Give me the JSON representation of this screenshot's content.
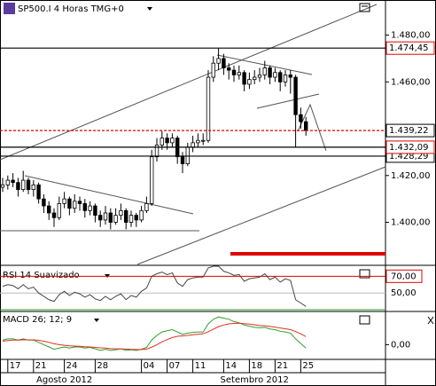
{
  "chart_data": {
    "type": "candlestick",
    "title": "SP500.I 4 Horas TMG+0",
    "ylim": [
      1382,
      1495
    ],
    "yticks": [
      {
        "value": 1480,
        "label": "1.480,00"
      },
      {
        "value": 1460,
        "label": "1.460,00"
      },
      {
        "value": 1420,
        "label": "1.420,00"
      },
      {
        "value": 1400,
        "label": "1.400,00"
      }
    ],
    "hlines": [
      {
        "value": 1474.45,
        "label": "1.474,45",
        "color": "#e00000",
        "line": "#000000"
      },
      {
        "value": 1428.29,
        "label": "1.428,29",
        "color": "#000000",
        "line": "#000000"
      },
      {
        "value": 1432.09,
        "label": "1.432,09",
        "color": "#e00000",
        "line": "#000000"
      },
      {
        "value": 1439.22,
        "label": "1.439,22",
        "color": "#000000",
        "line": "#e00000"
      }
    ],
    "xticks": [
      {
        "value": 1,
        "label": "17"
      },
      {
        "value": 6,
        "label": "21"
      },
      {
        "value": 12,
        "label": "24"
      },
      {
        "value": 18,
        "label": "28"
      },
      {
        "value": 27,
        "label": "04"
      },
      {
        "value": 32,
        "label": "07"
      },
      {
        "value": 37,
        "label": "11"
      },
      {
        "value": 43,
        "label": "14"
      },
      {
        "value": 48,
        "label": "18"
      },
      {
        "value": 53,
        "label": "21"
      },
      {
        "value": 58,
        "label": "25"
      }
    ],
    "months": [
      {
        "value": 12,
        "label": "Agosto 2012"
      },
      {
        "value": 49,
        "label": "Setembro 2012"
      }
    ],
    "candles": [
      [
        1415,
        1419,
        1413,
        1416
      ],
      [
        1416,
        1420,
        1414,
        1418
      ],
      [
        1418,
        1421,
        1415,
        1417
      ],
      [
        1417,
        1419,
        1411,
        1414
      ],
      [
        1414,
        1422,
        1413,
        1418
      ],
      [
        1418,
        1419,
        1412,
        1414
      ],
      [
        1414,
        1418,
        1411,
        1416
      ],
      [
        1416,
        1417,
        1408,
        1410
      ],
      [
        1410,
        1412,
        1404,
        1407
      ],
      [
        1407,
        1409,
        1401,
        1404
      ],
      [
        1404,
        1406,
        1398,
        1402
      ],
      [
        1402,
        1411,
        1401,
        1408
      ],
      [
        1408,
        1413,
        1406,
        1410
      ],
      [
        1410,
        1411,
        1403,
        1406
      ],
      [
        1406,
        1412,
        1404,
        1409
      ],
      [
        1409,
        1411,
        1405,
        1408
      ],
      [
        1408,
        1410,
        1402,
        1405
      ],
      [
        1405,
        1409,
        1403,
        1407
      ],
      [
        1407,
        1408,
        1400,
        1403
      ],
      [
        1403,
        1405,
        1398,
        1401
      ],
      [
        1401,
        1407,
        1399,
        1404
      ],
      [
        1404,
        1406,
        1397,
        1400
      ],
      [
        1400,
        1406,
        1399,
        1403
      ],
      [
        1403,
        1408,
        1401,
        1405
      ],
      [
        1405,
        1406,
        1397,
        1400
      ],
      [
        1400,
        1405,
        1398,
        1403
      ],
      [
        1403,
        1404,
        1398,
        1401
      ],
      [
        1401,
        1407,
        1400,
        1405
      ],
      [
        1405,
        1411,
        1404,
        1408
      ],
      [
        1408,
        1431,
        1407,
        1428
      ],
      [
        1428,
        1436,
        1426,
        1433
      ],
      [
        1433,
        1439,
        1431,
        1436
      ],
      [
        1436,
        1438,
        1431,
        1434
      ],
      [
        1434,
        1438,
        1432,
        1436
      ],
      [
        1436,
        1437,
        1425,
        1428
      ],
      [
        1428,
        1430,
        1421,
        1425
      ],
      [
        1425,
        1434,
        1424,
        1432
      ],
      [
        1432,
        1437,
        1430,
        1434
      ],
      [
        1434,
        1438,
        1432,
        1435
      ],
      [
        1435,
        1438,
        1433,
        1435
      ],
      [
        1435,
        1465,
        1434,
        1462
      ],
      [
        1462,
        1471,
        1460,
        1468
      ],
      [
        1468,
        1474.45,
        1465,
        1470
      ],
      [
        1470,
        1472,
        1463,
        1466
      ],
      [
        1466,
        1468,
        1461,
        1465
      ],
      [
        1465,
        1467,
        1460,
        1463
      ],
      [
        1463,
        1467,
        1461,
        1464
      ],
      [
        1464,
        1465,
        1456,
        1459
      ],
      [
        1459,
        1464,
        1457,
        1461
      ],
      [
        1461,
        1465,
        1459,
        1462
      ],
      [
        1462,
        1466,
        1460,
        1463
      ],
      [
        1463,
        1469,
        1461,
        1466
      ],
      [
        1466,
        1467,
        1459,
        1462
      ],
      [
        1462,
        1466,
        1460,
        1464
      ],
      [
        1464,
        1465,
        1456,
        1460
      ],
      [
        1460,
        1465,
        1458,
        1463
      ],
      [
        1463,
        1465,
        1455,
        1462
      ],
      [
        1462,
        1463,
        1432,
        1446
      ],
      [
        1446,
        1449,
        1440,
        1443
      ],
      [
        1443,
        1445,
        1437,
        1439.22
      ]
    ],
    "rsi": {
      "title": "RSI 14 Suavizado",
      "ylim": [
        29,
        82
      ],
      "color": "#444444",
      "yticks": [
        {
          "value": 70,
          "label": "70,00",
          "color": "#e00000"
        },
        {
          "value": 50,
          "label": "50,00",
          "color": "#000000"
        }
      ],
      "values": [
        58,
        60,
        59,
        55,
        60,
        55,
        57,
        50,
        46,
        42,
        40,
        48,
        52,
        47,
        51,
        49,
        45,
        48,
        43,
        41,
        46,
        42,
        46,
        49,
        42,
        47,
        45,
        52,
        56,
        70,
        73,
        75,
        72,
        74,
        62,
        58,
        66,
        68,
        69,
        69,
        80,
        82,
        82,
        76,
        74,
        71,
        72,
        64,
        67,
        68,
        69,
        73,
        66,
        69,
        63,
        67,
        65,
        42,
        38,
        34
      ]
    },
    "macd": {
      "title": "MACD 26; 12; 9",
      "ylim": [
        -6,
        14
      ],
      "yticks": [
        {
          "value": 0,
          "label": "0,00"
        }
      ],
      "series": [
        {
          "color": "#2e9e2e",
          "values": [
            2,
            2.5,
            2.5,
            2,
            2.5,
            2,
            2,
            1,
            0,
            -1,
            -2,
            -1.5,
            -1,
            -1.5,
            -1,
            -1,
            -1.5,
            -1.2,
            -1.8,
            -2.5,
            -2,
            -2.5,
            -2.2,
            -1.8,
            -2.5,
            -2.2,
            -2.5,
            -2,
            -1.2,
            2,
            4,
            5.5,
            6,
            6.5,
            5.5,
            4.5,
            5,
            5.3,
            5.5,
            5.5,
            9,
            11,
            12,
            11.5,
            11,
            10,
            9.5,
            8.5,
            8,
            7.5,
            7.3,
            7.5,
            6.8,
            6.5,
            5.8,
            5.5,
            5,
            2.5,
            0.5,
            -1.5
          ]
        },
        {
          "color": "#e03020",
          "values": [
            1.5,
            1.8,
            2,
            2,
            2.1,
            2.1,
            2.1,
            1.9,
            1.5,
            1,
            0.4,
            0,
            -0.3,
            -0.5,
            -0.6,
            -0.7,
            -0.9,
            -1,
            -1.2,
            -1.4,
            -1.5,
            -1.7,
            -1.8,
            -1.8,
            -1.9,
            -2,
            -2.1,
            -2.1,
            -1.9,
            -1.1,
            0,
            1.2,
            2.2,
            3.1,
            3.6,
            3.8,
            4,
            4.3,
            4.5,
            4.7,
            5.6,
            6.7,
            7.8,
            8.5,
            9,
            9.2,
            9.3,
            9.1,
            8.9,
            8.6,
            8.3,
            8.2,
            7.9,
            7.6,
            7.2,
            6.9,
            6.5,
            5.7,
            4.7,
            3.5
          ]
        }
      ]
    }
  }
}
